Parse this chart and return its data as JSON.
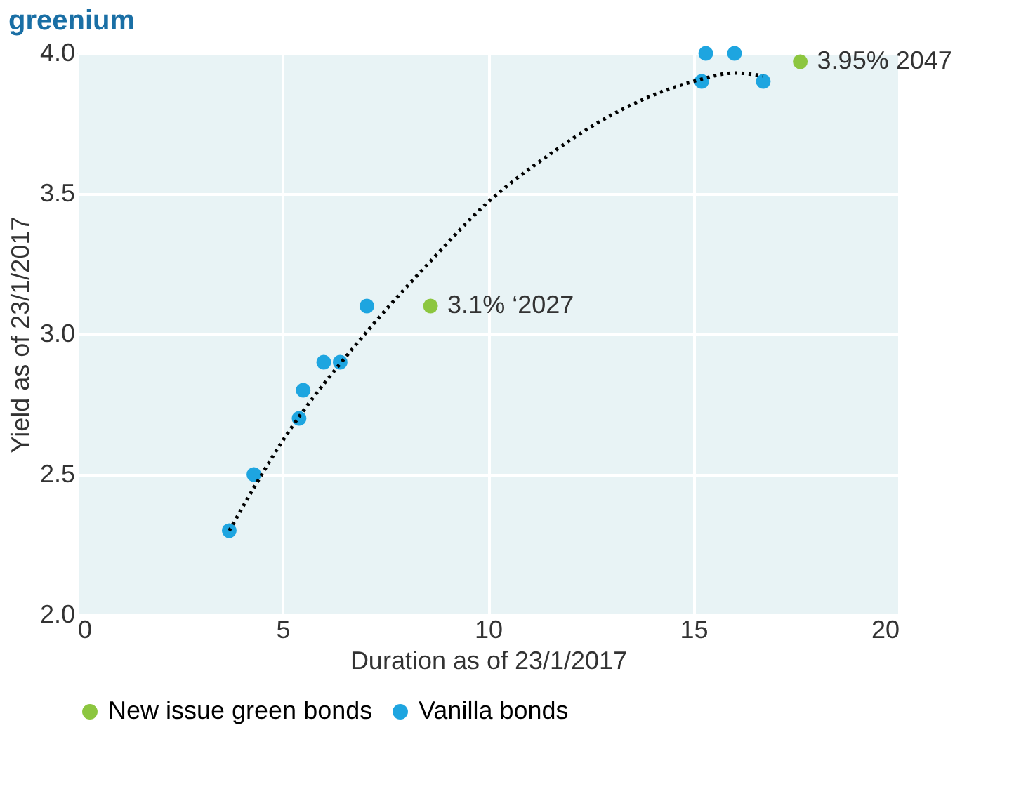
{
  "chart_data": {
    "type": "scatter",
    "title": "greenium",
    "xlabel": "Duration as of 23/1/2017",
    "ylabel": "Yield as of 23/1/2017",
    "xlim": [
      0,
      20
    ],
    "xticks": [
      0,
      5,
      10,
      15,
      20
    ],
    "ylim": [
      2.0,
      4.0
    ],
    "yticks": [
      {
        "value": 2.0,
        "label": "2.0"
      },
      {
        "value": 2.5,
        "label": "2.5"
      },
      {
        "value": 3.0,
        "label": "3.0"
      },
      {
        "value": 3.5,
        "label": "3.5"
      },
      {
        "value": 4.0,
        "label": "4.0"
      }
    ],
    "grid": true,
    "legend": "bottom",
    "marker": "circle",
    "series": [
      {
        "name": "New issue green bonds",
        "color": "#8cc63f",
        "x": [
          8.6,
          17.6
        ],
        "values": [
          3.1,
          3.97
        ]
      },
      {
        "name": "Vanilla bonds",
        "color": "#1ea5e0",
        "x": [
          3.7,
          4.3,
          5.4,
          5.5,
          6.0,
          6.4,
          7.05,
          15.2,
          15.3,
          16.0,
          16.7
        ],
        "values": [
          2.3,
          2.5,
          2.7,
          2.8,
          2.9,
          2.9,
          3.1,
          3.9,
          4.0,
          4.0,
          3.9
        ]
      },
      {
        "type": "line",
        "color": "#000000",
        "line_style": "dotted",
        "marker": "none",
        "x": [
          3.7,
          5,
          7,
          8.6,
          10,
          11.5,
          13,
          14,
          15,
          16,
          16.7
        ],
        "values": [
          2.3,
          2.62,
          3.0,
          3.26,
          3.47,
          3.64,
          3.78,
          3.85,
          3.9,
          3.93,
          3.92
        ]
      }
    ],
    "annotations": [
      {
        "text": "3.1% ‘2027",
        "x": 8.6,
        "y": 3.1
      },
      {
        "text": "3.95% 2047",
        "x": 17.6,
        "y": 3.97
      }
    ]
  }
}
